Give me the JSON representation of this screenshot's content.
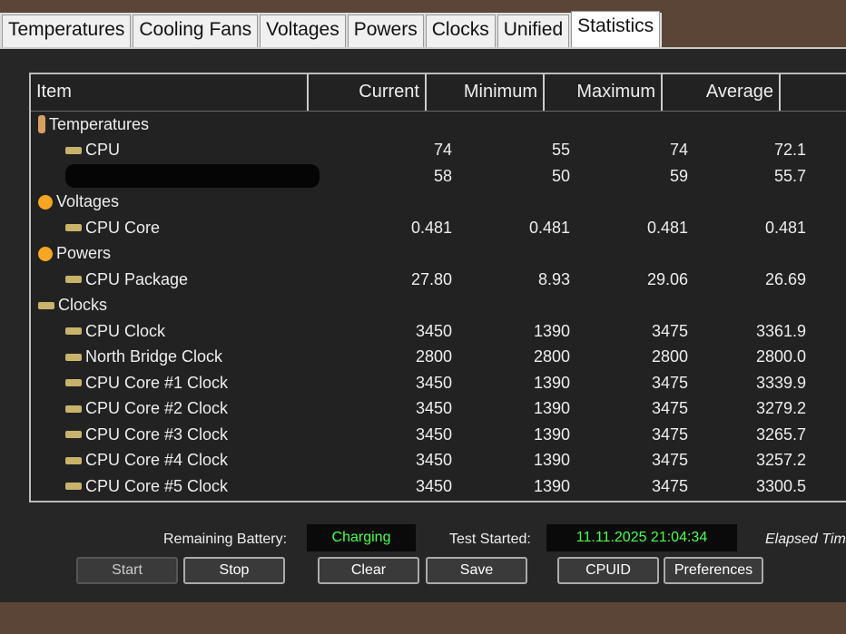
{
  "tabs": [
    "Temperatures",
    "Cooling Fans",
    "Voltages",
    "Powers",
    "Clocks",
    "Unified",
    "Statistics"
  ],
  "active_tab": "Statistics",
  "columns": [
    "Item",
    "Current",
    "Minimum",
    "Maximum",
    "Average"
  ],
  "rows": [
    {
      "level": 0,
      "icon": "thermometer-icon",
      "name": "Temperatures"
    },
    {
      "level": 1,
      "icon": "chip-icon",
      "name": "CPU",
      "values": [
        "74",
        "55",
        "74",
        "72.1"
      ]
    },
    {
      "level": 1,
      "icon": "redacted",
      "name": "",
      "values": [
        "58",
        "50",
        "59",
        "55.7"
      ]
    },
    {
      "level": 0,
      "icon": "voltage-icon",
      "name": "Voltages"
    },
    {
      "level": 1,
      "icon": "chip-icon",
      "name": "CPU Core",
      "values": [
        "0.481",
        "0.481",
        "0.481",
        "0.481"
      ]
    },
    {
      "level": 0,
      "icon": "power-icon",
      "name": "Powers"
    },
    {
      "level": 1,
      "icon": "chip-icon",
      "name": "CPU Package",
      "values": [
        "27.80",
        "8.93",
        "29.06",
        "26.69"
      ]
    },
    {
      "level": 0,
      "icon": "clock-chip-icon",
      "name": "Clocks"
    },
    {
      "level": 1,
      "icon": "chip-icon",
      "name": "CPU Clock",
      "values": [
        "3450",
        "1390",
        "3475",
        "3361.9"
      ]
    },
    {
      "level": 1,
      "icon": "chip-icon",
      "name": "North Bridge Clock",
      "values": [
        "2800",
        "2800",
        "2800",
        "2800.0"
      ]
    },
    {
      "level": 1,
      "icon": "chip-icon",
      "name": "CPU Core #1 Clock",
      "values": [
        "3450",
        "1390",
        "3475",
        "3339.9"
      ]
    },
    {
      "level": 1,
      "icon": "chip-icon",
      "name": "CPU Core #2 Clock",
      "values": [
        "3450",
        "1390",
        "3475",
        "3279.2"
      ]
    },
    {
      "level": 1,
      "icon": "chip-icon",
      "name": "CPU Core #3 Clock",
      "values": [
        "3450",
        "1390",
        "3475",
        "3265.7"
      ]
    },
    {
      "level": 1,
      "icon": "chip-icon",
      "name": "CPU Core #4 Clock",
      "values": [
        "3450",
        "1390",
        "3475",
        "3257.2"
      ]
    },
    {
      "level": 1,
      "icon": "chip-icon",
      "name": "CPU Core #5 Clock",
      "values": [
        "3450",
        "1390",
        "3475",
        "3300.5"
      ]
    }
  ],
  "status": {
    "battery_label": "Remaining Battery:",
    "battery_value": "Charging",
    "test_started_label": "Test Started:",
    "test_started_value": "11.11.2025 21:04:34",
    "elapsed_label": "Elapsed Tim"
  },
  "buttons": {
    "start": "Start",
    "stop": "Stop",
    "clear": "Clear",
    "save": "Save",
    "cpuid": "CPUID",
    "preferences": "Preferences"
  }
}
